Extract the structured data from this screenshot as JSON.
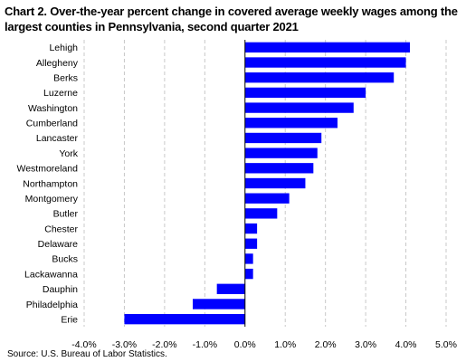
{
  "chart_data": {
    "type": "bar",
    "orientation": "horizontal",
    "title": "Chart 2. Over-the-year percent change in covered average weekly wages among the largest counties in Pennsylvania, second quarter 2021",
    "source": "Source:  U.S. Bureau of Labor Statistics.",
    "xlabel": "",
    "ylabel": "",
    "xlim": [
      -4.0,
      5.0
    ],
    "x_ticks": [
      "-4.0%",
      "-3.0%",
      "-2.0%",
      "-1.0%",
      "0.0%",
      "1.0%",
      "2.0%",
      "3.0%",
      "4.0%",
      "5.0%"
    ],
    "gridlines": "dashed-vertical",
    "bar_color": "#0000ff",
    "categories": [
      "Lehigh",
      "Allegheny",
      "Berks",
      "Luzerne",
      "Washington",
      "Cumberland",
      "Lancaster",
      "York",
      "Westmoreland",
      "Northampton",
      "Montgomery",
      "Butler",
      "Chester",
      "Delaware",
      "Bucks",
      "Lackawanna",
      "Dauphin",
      "Philadelphia",
      "Erie"
    ],
    "values": [
      4.1,
      4.0,
      3.7,
      3.0,
      2.7,
      2.3,
      1.9,
      1.8,
      1.7,
      1.5,
      1.1,
      0.8,
      0.3,
      0.3,
      0.2,
      0.2,
      -0.7,
      -1.3,
      -3.0
    ]
  }
}
